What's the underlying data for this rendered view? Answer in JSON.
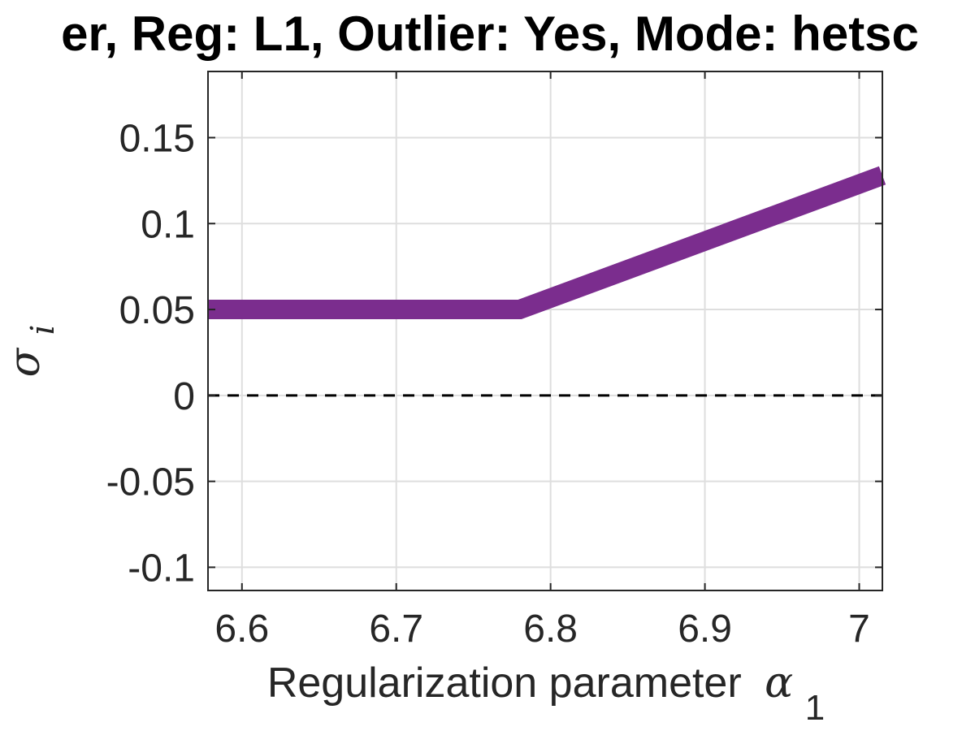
{
  "chart_data": {
    "type": "line",
    "title": "er, Reg: L1, Outlier: Yes, Mode: hetsc",
    "xlabel": "Regularization parameter",
    "xlabel_symbol": "α",
    "xlabel_subscript": "1",
    "ylabel_symbol": "σ",
    "ylabel_subscript": "i",
    "xlim": [
      6.578,
      7.015
    ],
    "ylim": [
      -0.1135,
      0.1885
    ],
    "x_ticks": [
      6.6,
      6.7,
      6.8,
      6.9,
      7
    ],
    "x_tick_labels": [
      "6.6",
      "6.7",
      "6.8",
      "6.9",
      "7"
    ],
    "y_ticks": [
      -0.1,
      -0.05,
      0,
      0.05,
      0.1,
      0.15
    ],
    "y_tick_labels": [
      "-0.1",
      "-0.05",
      "0",
      "0.05",
      "0.1",
      "0.15"
    ],
    "grid": true,
    "series": [
      {
        "color": "#7b2d8e",
        "x": [
          6.578,
          6.78,
          7.015
        ],
        "y": [
          0.05,
          0.05,
          0.128
        ]
      }
    ],
    "reference_line": {
      "y": 0,
      "style": "dashed",
      "color": "#000000"
    }
  }
}
